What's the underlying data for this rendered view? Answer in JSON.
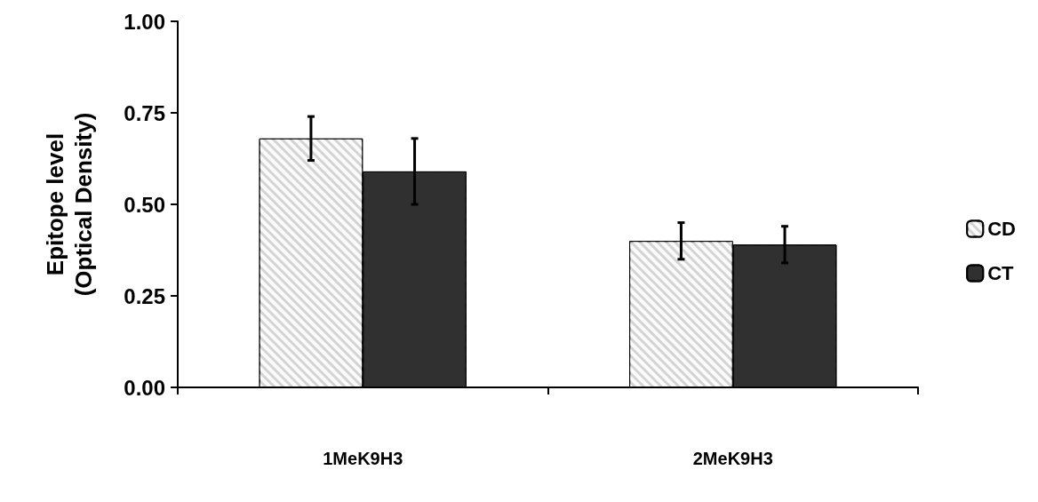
{
  "chart_data": {
    "type": "bar",
    "ylabel": "Epitope level\n(Optical Density)",
    "categories": [
      "1MeK9H3",
      "2MeK9H3"
    ],
    "series": [
      {
        "name": "CD",
        "color": "#d4d4d4",
        "values": [
          0.68,
          0.4
        ],
        "errors": [
          0.06,
          0.05
        ]
      },
      {
        "name": "CT",
        "color": "#303030",
        "values": [
          0.59,
          0.39
        ],
        "errors": [
          0.09,
          0.05
        ]
      }
    ],
    "ylim": [
      0,
      1
    ],
    "yticks": [
      {
        "value": 0,
        "label": "0.00"
      },
      {
        "value": 0.25,
        "label": "0.25"
      },
      {
        "value": 0.5,
        "label": "0.50"
      },
      {
        "value": 0.75,
        "label": "0.75"
      },
      {
        "value": 1,
        "label": "1.00"
      }
    ],
    "grid": false,
    "legend": "right"
  }
}
